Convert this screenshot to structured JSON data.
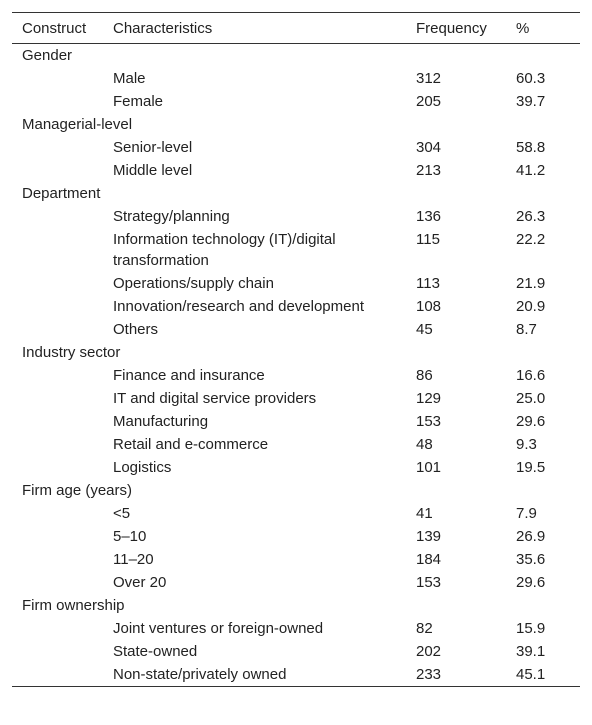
{
  "table": {
    "header": [
      "Construct",
      "Characteristics",
      "Frequency",
      "%"
    ],
    "groups": [
      {
        "name": "Gender",
        "rows": [
          [
            "Male",
            "312",
            "60.3"
          ],
          [
            "Female",
            "205",
            "39.7"
          ]
        ]
      },
      {
        "name": "Managerial-level",
        "rows": [
          [
            "Senior-level",
            "304",
            "58.8"
          ],
          [
            "Middle level",
            "213",
            "41.2"
          ]
        ]
      },
      {
        "name": "Department",
        "rows": [
          [
            "Strategy/planning",
            "136",
            "26.3"
          ],
          [
            "Information technology (IT)/digital transformation",
            "115",
            "22.2"
          ],
          [
            "Operations/supply chain",
            "113",
            "21.9"
          ],
          [
            "Innovation/research and development",
            "108",
            "20.9"
          ],
          [
            "Others",
            "45",
            "8.7"
          ]
        ]
      },
      {
        "name": "Industry sector",
        "rows": [
          [
            "Finance and insurance",
            "86",
            "16.6"
          ],
          [
            "IT and digital service providers",
            "129",
            "25.0"
          ],
          [
            "Manufacturing",
            "153",
            "29.6"
          ],
          [
            "Retail and e-commerce",
            "48",
            "9.3"
          ],
          [
            "Logistics",
            "101",
            "19.5"
          ]
        ]
      },
      {
        "name": "Firm age (years)",
        "rows": [
          [
            "<5",
            "41",
            "7.9"
          ],
          [
            "5–10",
            "139",
            "26.9"
          ],
          [
            "11–20",
            "184",
            "35.6"
          ],
          [
            "Over 20",
            "153",
            "29.6"
          ]
        ]
      },
      {
        "name": "Firm ownership",
        "rows": [
          [
            "Joint ventures or foreign-owned",
            "82",
            "15.9"
          ],
          [
            "State-owned",
            "202",
            "39.1"
          ],
          [
            "Non-state/privately owned",
            "233",
            "45.1"
          ]
        ]
      }
    ]
  }
}
